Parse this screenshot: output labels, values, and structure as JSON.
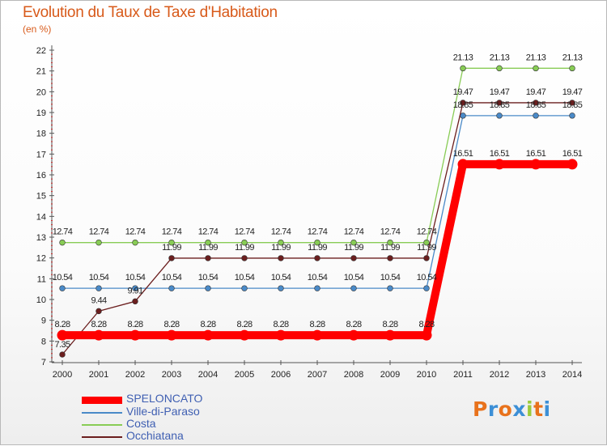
{
  "chart_data": {
    "type": "line",
    "title": "Evolution du Taux de Taxe d'Habitation",
    "ylabel": "(en %)",
    "xlabel": "",
    "ylim": [
      7,
      22
    ],
    "yticks": [
      "7",
      "8",
      "9",
      "10",
      "11",
      "12",
      "13",
      "14",
      "15",
      "16",
      "17",
      "18",
      "19",
      "20",
      "21",
      "22"
    ],
    "x": [
      "2000",
      "2001",
      "2002",
      "2003",
      "2004",
      "2005",
      "2006",
      "2007",
      "2008",
      "2009",
      "2010",
      "2011",
      "2012",
      "2013",
      "2014"
    ],
    "series": [
      {
        "name": "SPELONCATO",
        "color": "#ff0000",
        "values": [
          8.28,
          8.28,
          8.28,
          8.28,
          8.28,
          8.28,
          8.28,
          8.28,
          8.28,
          8.28,
          8.28,
          16.51,
          16.51,
          16.51,
          16.51
        ],
        "labels": [
          "8.28",
          "8.28",
          "8.28",
          "8.28",
          "8.28",
          "8.28",
          "8.28",
          "8.28",
          "8.28",
          "8.28",
          "8.28",
          "16.51",
          "16.51",
          "16.51",
          "16.51"
        ]
      },
      {
        "name": "Ville-di-Paraso",
        "color": "#4a8ac8",
        "values": [
          10.54,
          10.54,
          10.54,
          10.54,
          10.54,
          10.54,
          10.54,
          10.54,
          10.54,
          10.54,
          10.54,
          18.85,
          18.85,
          18.85,
          18.85
        ],
        "labels": [
          "10.54",
          "10.54",
          "10.54",
          "10.54",
          "10.54",
          "10.54",
          "10.54",
          "10.54",
          "10.54",
          "10.54",
          "10.54",
          "18.85",
          "18.85",
          "18.85",
          "18.85"
        ]
      },
      {
        "name": "Costa",
        "color": "#88cc55",
        "values": [
          12.74,
          12.74,
          12.74,
          12.74,
          12.74,
          12.74,
          12.74,
          12.74,
          12.74,
          12.74,
          12.74,
          21.13,
          21.13,
          21.13,
          21.13
        ],
        "labels": [
          "12.74",
          "12.74",
          "12.74",
          "12.74",
          "12.74",
          "12.74",
          "12.74",
          "12.74",
          "12.74",
          "12.74",
          "12.74",
          "21.13",
          "21.13",
          "21.13",
          "21.13"
        ]
      },
      {
        "name": "Occhiatana",
        "color": "#6b1e1e",
        "values": [
          7.35,
          9.44,
          9.91,
          11.99,
          11.99,
          11.99,
          11.99,
          11.99,
          11.99,
          11.99,
          11.99,
          19.47,
          19.47,
          19.47,
          19.47
        ],
        "labels": [
          "7.35",
          "9.44",
          "9.91",
          "11.99",
          "11.99",
          "11.99",
          "11.99",
          "11.99",
          "11.99",
          "11.99",
          "11.99",
          "19.47",
          "19.47",
          "19.47",
          "19.47"
        ]
      }
    ],
    "grid": false,
    "legend_position": "bottom-left"
  },
  "logo": {
    "text": "Proxiti",
    "letters": [
      "P",
      "r",
      "o",
      "x",
      "i",
      "t",
      "i"
    ],
    "colors": [
      "#e8721c",
      "#3c8fd6",
      "#e8721c",
      "#3c8fd6",
      "#9bcb3c",
      "#e8721c",
      "#3c8fd6"
    ]
  }
}
